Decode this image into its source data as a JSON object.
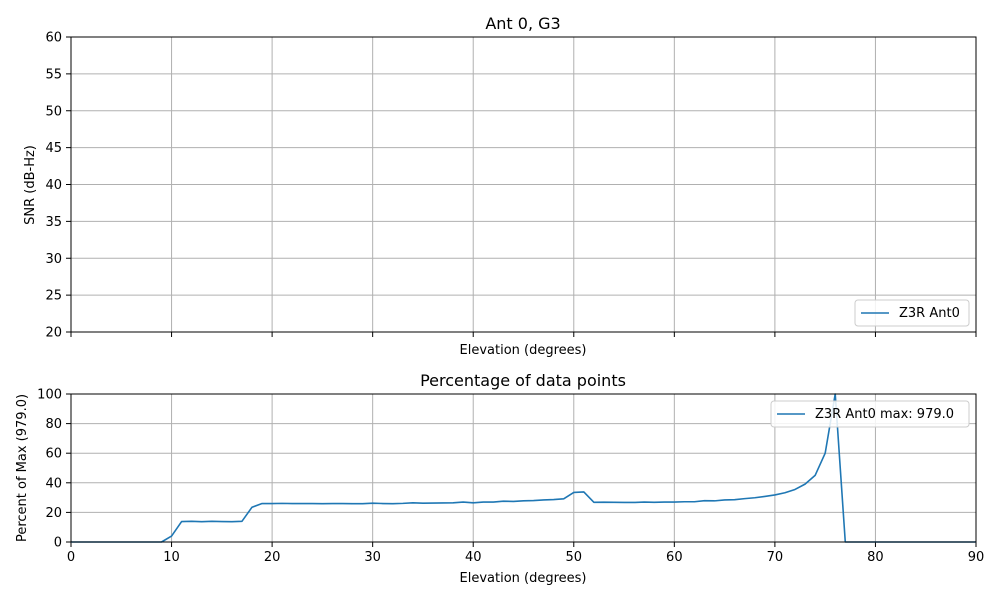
{
  "chart_data": [
    {
      "type": "line",
      "title": "Ant 0, G3",
      "xlabel": "Elevation (degrees)",
      "ylabel": "SNR (dB-Hz)",
      "xlim": [
        0,
        90
      ],
      "ylim": [
        20,
        60
      ],
      "yticks": [
        "20",
        "25",
        "30",
        "35",
        "40",
        "45",
        "50",
        "55",
        "60"
      ],
      "grid": true,
      "legend_position": "lower-right",
      "series": [
        {
          "name": "Z3R Ant0",
          "color": "#1f77b4",
          "x": [],
          "y": []
        }
      ]
    },
    {
      "type": "line",
      "title": "Percentage of data points",
      "xlabel": "Elevation (degrees)",
      "ylabel": "Percent of Max (979.0)",
      "xlim": [
        0,
        90
      ],
      "ylim": [
        0,
        100
      ],
      "xticks": [
        "0",
        "10",
        "20",
        "30",
        "40",
        "50",
        "60",
        "70",
        "80",
        "90"
      ],
      "yticks": [
        "0",
        "20",
        "40",
        "60",
        "80",
        "100"
      ],
      "grid": true,
      "legend_position": "upper-right",
      "series": [
        {
          "name": "Z3R Ant0 max: 979.0",
          "color": "#1f77b4",
          "x": [
            0,
            1,
            2,
            3,
            4,
            5,
            6,
            7,
            8,
            9,
            10,
            11,
            12,
            13,
            14,
            15,
            16,
            17,
            18,
            19,
            20,
            21,
            22,
            23,
            24,
            25,
            26,
            27,
            28,
            29,
            30,
            31,
            32,
            33,
            34,
            35,
            36,
            37,
            38,
            39,
            40,
            41,
            42,
            43,
            44,
            45,
            46,
            47,
            48,
            49,
            50,
            51,
            52,
            53,
            54,
            55,
            56,
            57,
            58,
            59,
            60,
            61,
            62,
            63,
            64,
            65,
            66,
            67,
            68,
            69,
            70,
            71,
            72,
            73,
            74,
            75,
            76,
            77,
            78,
            79,
            80,
            81,
            82,
            83,
            84,
            85,
            86,
            87,
            88,
            89,
            90
          ],
          "y": [
            0,
            0,
            0,
            0,
            0,
            0,
            0,
            0,
            0,
            0,
            4,
            13.8,
            14,
            13.7,
            14,
            13.8,
            13.7,
            14,
            23.5,
            26,
            26,
            26.1,
            26,
            26,
            26,
            25.9,
            26,
            26,
            25.9,
            25.9,
            26.2,
            26,
            25.9,
            26.1,
            26.5,
            26.2,
            26.3,
            26.4,
            26.5,
            27,
            26.5,
            27,
            27,
            27.6,
            27.4,
            27.8,
            28,
            28.4,
            28.7,
            29.2,
            33.5,
            33.8,
            26.8,
            26.9,
            26.8,
            26.7,
            26.7,
            27,
            26.8,
            27,
            27,
            27.2,
            27.2,
            27.9,
            27.8,
            28.4,
            28.6,
            29.3,
            29.9,
            30.8,
            31.8,
            33.3,
            35.5,
            39.1,
            45,
            60,
            100,
            0,
            0,
            0,
            0,
            0,
            0,
            0,
            0,
            0,
            0,
            0,
            0,
            0,
            0
          ]
        }
      ]
    }
  ]
}
